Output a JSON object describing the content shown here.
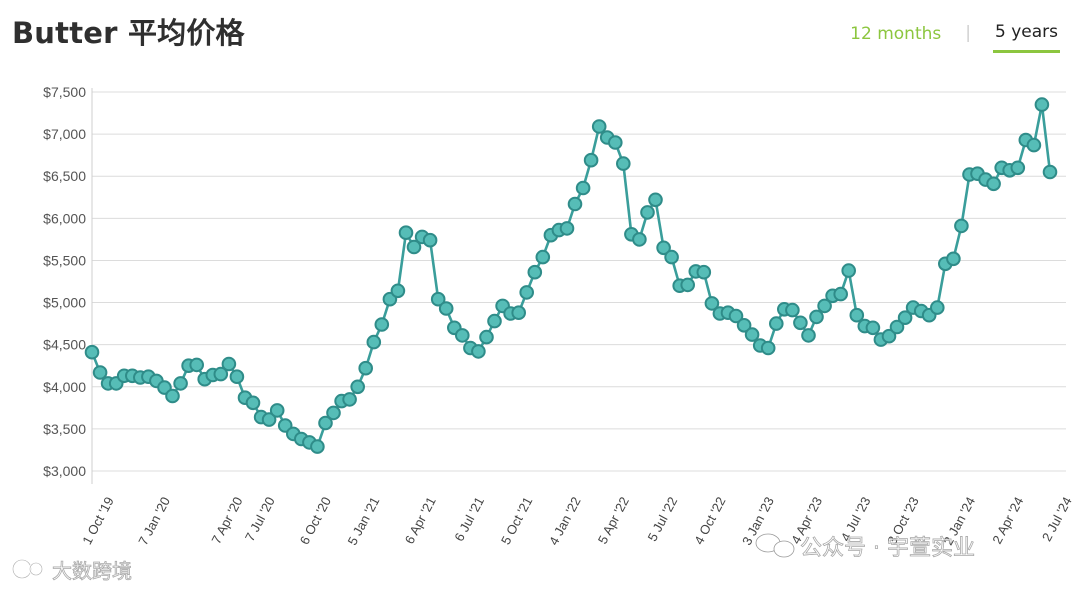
{
  "header": {
    "title": "Butter 平均价格",
    "tabs": [
      {
        "label": "12 months",
        "active": false
      },
      {
        "label": "5 years",
        "active": true
      }
    ]
  },
  "watermarks": {
    "left": "大数跨境",
    "right": "公众号 · 宇萱实业"
  },
  "colors": {
    "line": "#3a9e9b",
    "marker_fill": "#56bdb7",
    "marker_stroke": "#2f8c89",
    "accent": "#8cc63f",
    "grid": "#dcdcdc"
  },
  "chart_data": {
    "type": "line",
    "title": "Butter 平均价格",
    "xlabel": "",
    "ylabel": "",
    "ylim": [
      3000,
      7500
    ],
    "yticks": [
      "$7,500",
      "$7,000",
      "$6,500",
      "$6,000",
      "$5,500",
      "$5,000",
      "$4,500",
      "$4,000",
      "$3,500",
      "$3,000"
    ],
    "ytick_values": [
      7500,
      7000,
      6500,
      6000,
      5500,
      5000,
      4500,
      4000,
      3500,
      3000
    ],
    "xticks": [
      "1 Oct '19",
      "7 Jan '20",
      "7 Apr '20",
      "7 Jul '20",
      "6 Oct '20",
      "5 Jan '21",
      "6 Apr '21",
      "6 Jul '21",
      "5 Oct '21",
      "4 Jan '22",
      "5 Apr '22",
      "5 Jul '22",
      "4 Oct '22",
      "3 Jan '23",
      "4 Apr '23",
      "4 Jul '23",
      "3 Oct '23",
      "2 Jan '24",
      "2 Apr '24",
      "2 Jul '24"
    ],
    "xtick_index": [
      2,
      9,
      18,
      22,
      29,
      35,
      42,
      48,
      54,
      60,
      66,
      72,
      78,
      84,
      90,
      96,
      102,
      109,
      115,
      121
    ],
    "grid": true,
    "legend": "none",
    "series": [
      {
        "values": [
          4410,
          4170,
          4040,
          4040,
          4130,
          4130,
          4110,
          4120,
          4070,
          3990,
          3890,
          4040,
          4250,
          4260,
          4090,
          4140,
          4150,
          4270,
          4120,
          3870,
          3810,
          3640,
          3610,
          3720,
          3540,
          3440,
          3380,
          3340,
          3290,
          3570,
          3690,
          3830,
          3850,
          4000,
          4220,
          4530,
          4740,
          5040,
          5140,
          5830,
          5660,
          5780,
          5740,
          5040,
          4930,
          4700,
          4610,
          4460,
          4420,
          4590,
          4780,
          4960,
          4870,
          4880,
          5120,
          5360,
          5540,
          5800,
          5860,
          5880,
          6170,
          6360,
          6690,
          7090,
          6960,
          6900,
          6650,
          5810,
          5750,
          6070,
          6220,
          5650,
          5540,
          5200,
          5210,
          5370,
          5360,
          4990,
          4870,
          4880,
          4840,
          4730,
          4620,
          4490,
          4460,
          4750,
          4920,
          4910,
          4760,
          4610,
          4830,
          4960,
          5080,
          5100,
          5380,
          4850,
          4720,
          4700,
          4560,
          4600,
          4710,
          4820,
          4940,
          4900,
          4850,
          4940,
          5460,
          5520,
          5910,
          6520,
          6530,
          6460,
          6410,
          6600,
          6570,
          6600,
          6930,
          6870,
          7350,
          6550
        ]
      }
    ]
  }
}
